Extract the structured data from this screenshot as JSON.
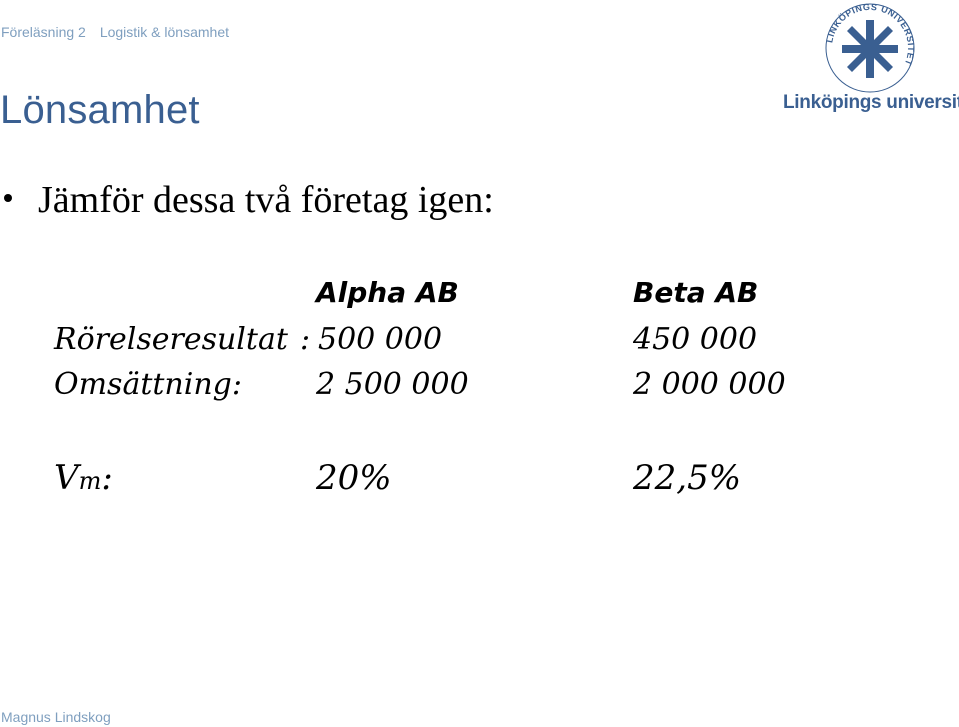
{
  "header": {
    "course": "Föreläsning 2",
    "topic": "Logistik & lönsamhet"
  },
  "title": "Lönsamhet",
  "bullet": "Jämför dessa två företag igen:",
  "comparison": {
    "columns": [
      "Alpha AB",
      "Beta AB"
    ],
    "rows": [
      {
        "label": "Rörelseresultat",
        "separator": ":",
        "alpha": "500 000",
        "beta": "450 000"
      },
      {
        "label": "Omsättning:",
        "alpha": "2 500 000",
        "beta": "2 000 000"
      },
      {
        "label_main": "V",
        "label_sub": "m",
        "label_suffix": ":",
        "alpha": "20%",
        "beta": "22,5%"
      }
    ]
  },
  "logo": {
    "text": "Linköpings universitet",
    "seal_text": "LINKÖPINGS UNIVERSITET",
    "color": "#3a5f91"
  },
  "footer": {
    "author": "Magnus Lindskog"
  }
}
